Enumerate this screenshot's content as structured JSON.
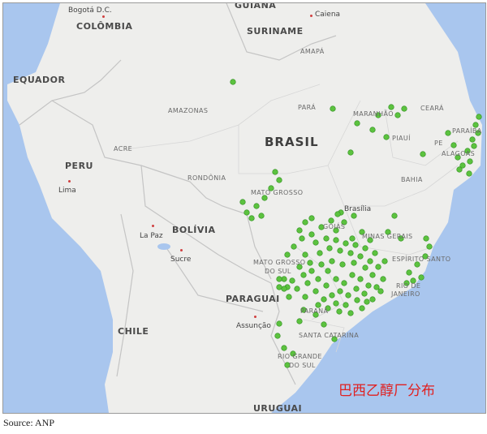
{
  "map": {
    "countries": {
      "colombia": "COLÔMBIA",
      "ecuador": "EQUADOR",
      "peru": "PERU",
      "bolivia": "BOLÍVIA",
      "brasil": "BRASIL",
      "paraguai": "PARAGUAI",
      "chile": "CHILE",
      "uruguai": "URUGUAI",
      "suriname": "SURINAME",
      "guiana": "GUIANA"
    },
    "states": {
      "amazonas": "AMAZONAS",
      "para": "PARÁ",
      "amapa": "AMAPÁ",
      "maranhao": "MARANHÃO",
      "ceara": "CEARÁ",
      "piaui": "PIAUÍ",
      "paraiba": "PARAÍBA",
      "pe": "PE",
      "alagoas": "ALAGOAS",
      "bahia": "BAHIA",
      "acre": "ACRE",
      "rondonia": "RONDÔNIA",
      "mato_grosso": "MATO GROSSO",
      "goias": "GOIÁS",
      "minas_gerais": "MINAS GERAIS",
      "ms_line1": "MATO GROSSO",
      "ms_line2": "DO SUL",
      "espirito_santo": "ESPÍRITO SANTO",
      "rio_line1": "RIO DE",
      "rio_line2": "JANEIRO",
      "parana": "PARANÁ",
      "santa_catarina": "SANTA CATARINA",
      "rs_line1": "RIO GRANDE",
      "rs_line2": "DO SUL"
    },
    "cities": {
      "bogota": "Bogotá D.C.",
      "caiena": "Caiena",
      "lima": "Lima",
      "la_paz": "La Paz",
      "sucre": "Sucre",
      "brasilia": "Brasília",
      "assuncao": "Assunção"
    },
    "colors": {
      "ocean": "#a9c6ee",
      "land": "#eeeeec",
      "border": "#bdbdbd",
      "marker": "#5cc23f",
      "marker_stroke": "#2f8f1f"
    },
    "markers": {
      "symbol": "green-circle",
      "meaning": "ethanol plant location"
    }
  },
  "annotation": "巴西乙醇厂分布",
  "source": "Source: ANP"
}
